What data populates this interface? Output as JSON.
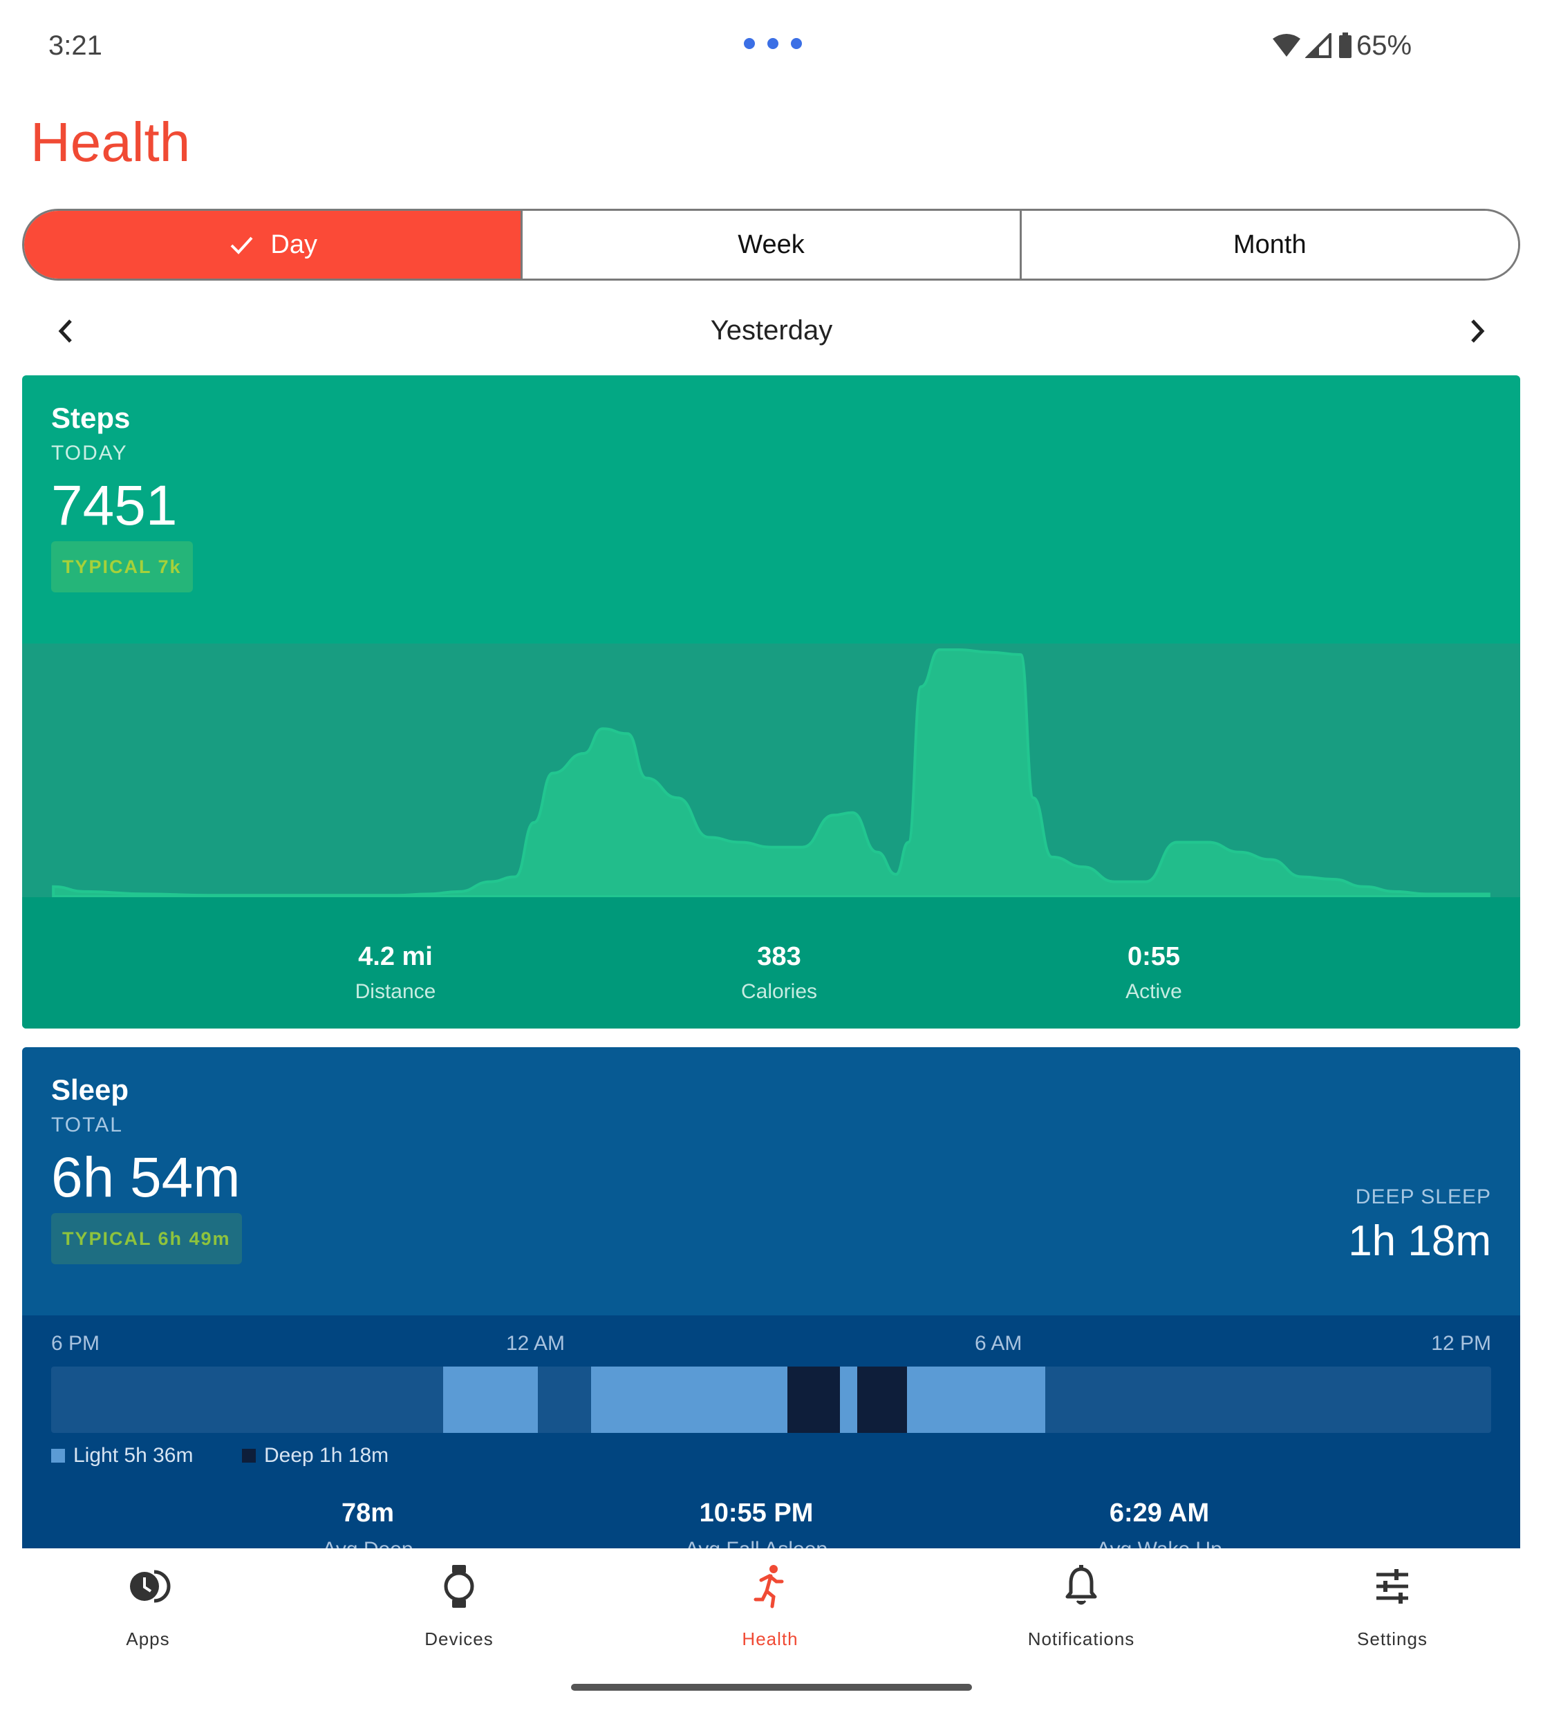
{
  "status_bar": {
    "time": "3:21",
    "battery": "65%"
  },
  "header": {
    "title": "Health"
  },
  "period_tabs": [
    {
      "label": "Day",
      "selected": true
    },
    {
      "label": "Week",
      "selected": false
    },
    {
      "label": "Month",
      "selected": false
    }
  ],
  "date_nav": {
    "label": "Yesterday"
  },
  "steps": {
    "title": "Steps",
    "subtitle": "TODAY",
    "value": "7451",
    "typical": "TYPICAL 7k",
    "colors": {
      "card": "#03a884",
      "area": "#22bd8b",
      "typical_bar": "#4caf50"
    },
    "stats": [
      {
        "value": "4.2 mi",
        "label": "Distance"
      },
      {
        "value": "383",
        "label": "Calories"
      },
      {
        "value": "0:55",
        "label": "Active"
      }
    ]
  },
  "sleep": {
    "title": "Sleep",
    "subtitle": "TOTAL",
    "value": "6h 54m",
    "typical": "TYPICAL 6h 49m",
    "deep_label": "DEEP SLEEP",
    "deep_value": "1h 18m",
    "axis_labels": [
      "6 PM",
      "12 AM",
      "6 AM",
      "12 PM"
    ],
    "colors": {
      "card": "#075a93",
      "light": "#5b9bd5",
      "deep": "#0e1e3a",
      "track": "#16548c"
    },
    "segments": [
      {
        "stage": "light",
        "start_h": 4.9,
        "end_h": 6.08
      },
      {
        "stage": "light",
        "start_h": 6.75,
        "end_h": 9.2
      },
      {
        "stage": "deep",
        "start_h": 9.2,
        "end_h": 9.86
      },
      {
        "stage": "light",
        "start_h": 9.86,
        "end_h": 10.08
      },
      {
        "stage": "deep",
        "start_h": 10.08,
        "end_h": 10.7
      },
      {
        "stage": "light",
        "start_h": 10.7,
        "end_h": 12.43
      }
    ],
    "legend": [
      {
        "label": "Light 5h 36m",
        "color": "#5b9bd5"
      },
      {
        "label": "Deep 1h 18m",
        "color": "#0e1e3a"
      }
    ],
    "stats": [
      {
        "value": "78m",
        "label": "Avg Deep"
      },
      {
        "value": "10:55 PM",
        "label": "Avg Fall Asleep"
      },
      {
        "value": "6:29 AM",
        "label": "Avg Wake Up"
      }
    ]
  },
  "chart_data": {
    "type": "area",
    "title": "Steps",
    "x_ticks": [
      "0",
      "6",
      "12",
      "18"
    ],
    "xlim": [
      0,
      24
    ],
    "x": [
      0.5,
      1,
      2,
      3,
      4,
      5,
      6,
      6.5,
      7,
      7.5,
      7.9,
      8.2,
      8.5,
      9,
      9.3,
      9.7,
      10,
      10.5,
      11,
      11.5,
      12,
      12.5,
      13,
      13.3,
      13.7,
      14,
      14.2,
      14.4,
      14.7,
      15,
      15.5,
      16,
      16.2,
      16.5,
      17,
      17.5,
      18,
      18.5,
      19,
      19.5,
      20,
      20.5,
      21,
      21.5,
      22,
      22.5,
      23,
      23.5
    ],
    "values": [
      4,
      2,
      1,
      0.5,
      0.5,
      0.5,
      0.5,
      1,
      2,
      6,
      8,
      30,
      50,
      58,
      68,
      66,
      48,
      40,
      24,
      22,
      20,
      20,
      33,
      34,
      18,
      9,
      22,
      85,
      100,
      100,
      99,
      98,
      40,
      16,
      12,
      6,
      6,
      22,
      22,
      18,
      15,
      8,
      7,
      4,
      2,
      1,
      1,
      1
    ],
    "highlight_range": [
      7.8,
      9.8
    ],
    "ylabel": "",
    "xlabel": ""
  },
  "bottom_nav": [
    {
      "label": "Apps",
      "icon": "apps-icon",
      "active": false
    },
    {
      "label": "Devices",
      "icon": "watch-icon",
      "active": false
    },
    {
      "label": "Health",
      "icon": "running-icon",
      "active": true
    },
    {
      "label": "Notifications",
      "icon": "bell-icon",
      "active": false
    },
    {
      "label": "Settings",
      "icon": "sliders-icon",
      "active": false
    }
  ]
}
